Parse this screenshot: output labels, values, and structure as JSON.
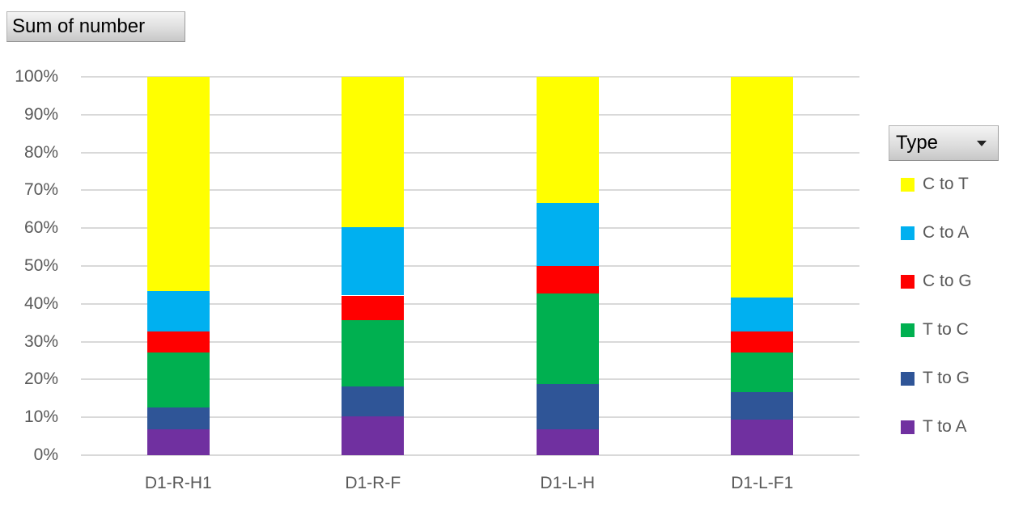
{
  "ui": {
    "field_button_label": "Sum of number",
    "legend_button_label": "Type",
    "dropdown_icon": "dropdown-arrow"
  },
  "colors": {
    "axis_text": "#595959",
    "gridline": "#d9d9d9",
    "button_text": "#000000"
  },
  "chart_data": {
    "type": "bar",
    "subtype": "100%-stacked-column",
    "title": "Sum of number",
    "legend_title": "Type",
    "legend_position": "right",
    "grid": true,
    "ylim": [
      0,
      100
    ],
    "yticks": [
      "100%",
      "90%",
      "80%",
      "70%",
      "60%",
      "50%",
      "40%",
      "30%",
      "20%",
      "10%",
      "0%"
    ],
    "categories": [
      "D1-R-H1",
      "D1-R-F",
      "D1-L-H",
      "D1-L-F1"
    ],
    "series": [
      {
        "name": "C to T",
        "color": "#FFFF00",
        "values": [
          56.6,
          39.7,
          33.3,
          58.4
        ]
      },
      {
        "name": "C to A",
        "color": "#00B0F0",
        "values": [
          10.8,
          18.1,
          16.7,
          9.0
        ]
      },
      {
        "name": "C to G",
        "color": "#FF0000",
        "values": [
          5.5,
          6.6,
          7.3,
          5.5
        ]
      },
      {
        "name": "T to C",
        "color": "#00B050",
        "values": [
          14.5,
          17.5,
          23.9,
          10.5
        ]
      },
      {
        "name": "T to G",
        "color": "#2F5597",
        "values": [
          5.7,
          7.9,
          11.9,
          7.3
        ]
      },
      {
        "name": "T to A",
        "color": "#7030A0",
        "values": [
          6.9,
          10.2,
          6.9,
          9.3
        ]
      }
    ],
    "stack_order_bottom_to_top": [
      "T to A",
      "T to G",
      "T to C",
      "C to G",
      "C to A",
      "C to T"
    ]
  }
}
